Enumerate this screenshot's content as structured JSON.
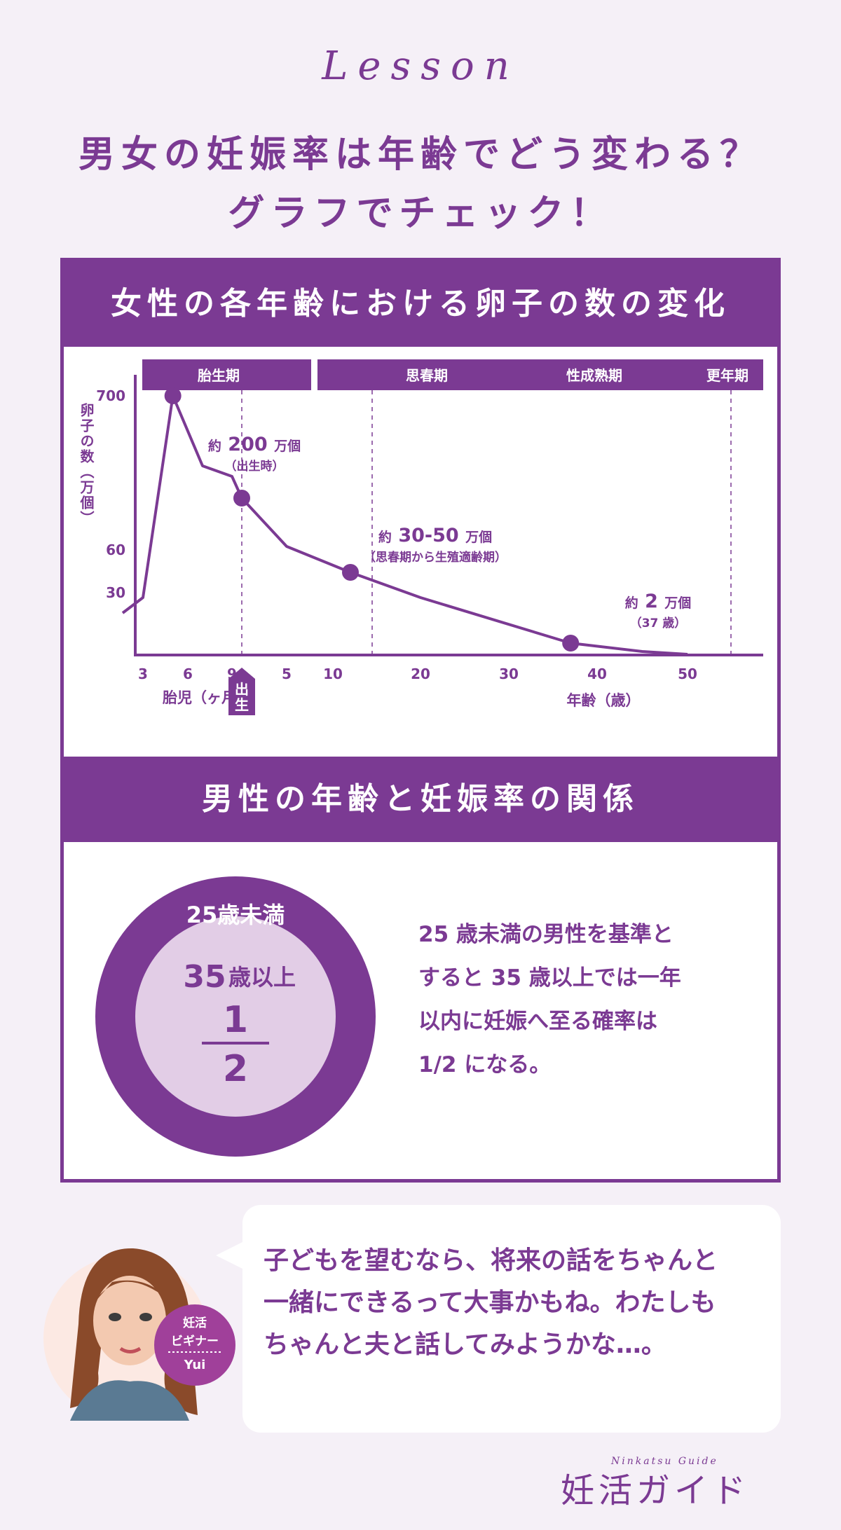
{
  "header": {
    "lesson": "Lesson",
    "title_line1": "男女の妊娠率は年齢でどう変わる？",
    "title_line2": "グラフでチェック！"
  },
  "section1": {
    "title": "女性の各年齢における卵子の数の変化"
  },
  "section2": {
    "title": "男性の年齢と妊娠率の関係",
    "circle_outer_label": "25歳未満",
    "circle_inner_label_num": "35",
    "circle_inner_label_text": "歳以上",
    "fraction_numerator": "1",
    "fraction_denominator": "2",
    "description": [
      "25 歳未満の男性を基準と",
      "すると 35 歳以上では一年",
      "以内に妊娠へ至る確率は",
      "1/2 になる。"
    ]
  },
  "speech": {
    "lines": [
      "子どもを望むなら、将来の話をちゃんと",
      "一緒にできるって大事かもね。わたしも",
      "ちゃんと夫と話してみようかな…。"
    ],
    "badge_line1": "妊活",
    "badge_line2": "ビギナー",
    "badge_name": "Yui"
  },
  "logo": {
    "text": "妊活ガイド",
    "subtitle": "Ninkatsu Guide"
  },
  "colors": {
    "accent": "#7b3a93",
    "light": "#e2cde6",
    "background": "#f5f0f7"
  },
  "chart_data": {
    "type": "line",
    "ylabel": "卵子の数（万個）",
    "yticks": [
      "700",
      "60",
      "30"
    ],
    "periods": [
      "胎生期",
      "思春期",
      "性成熟期",
      "更年期"
    ],
    "birth_label": "出生",
    "x_groups": [
      {
        "label": "胎児（ヶ月）",
        "ticks": [
          "3",
          "6",
          "9"
        ]
      },
      {
        "label": "年齢（歳）",
        "ticks": [
          "5",
          "10",
          "20",
          "30",
          "40",
          "50"
        ]
      }
    ],
    "series": [
      {
        "points": [
          {
            "x": "1 ヶ月",
            "y": 10
          },
          {
            "x": "3 ヶ月",
            "y": 22
          },
          {
            "x": "5 ヶ月",
            "y": 700
          },
          {
            "x": "7 ヶ月",
            "y": 520
          },
          {
            "x": "9 ヶ月",
            "y": 450
          },
          {
            "x": "0 歳",
            "y": 200
          },
          {
            "x": "5 歳",
            "y": 90
          },
          {
            "x": "12 歳",
            "y": 40
          },
          {
            "x": "20 歳",
            "y": 22
          },
          {
            "x": "37 歳",
            "y": 2
          },
          {
            "x": "45 歳",
            "y": 0.5
          },
          {
            "x": "50 歳",
            "y": 0
          }
        ]
      }
    ],
    "annotations": [
      {
        "label_pre": "約",
        "label_num": "200",
        "label_post": "万個",
        "sub": "（出生時）"
      },
      {
        "label_pre": "約",
        "label_num": "30-50",
        "label_post": "万個",
        "sub": "（思春期から生殖適齢期）"
      },
      {
        "label_pre": "約",
        "label_num": "2",
        "label_post": "万個",
        "sub": "（37 歳）"
      }
    ]
  }
}
